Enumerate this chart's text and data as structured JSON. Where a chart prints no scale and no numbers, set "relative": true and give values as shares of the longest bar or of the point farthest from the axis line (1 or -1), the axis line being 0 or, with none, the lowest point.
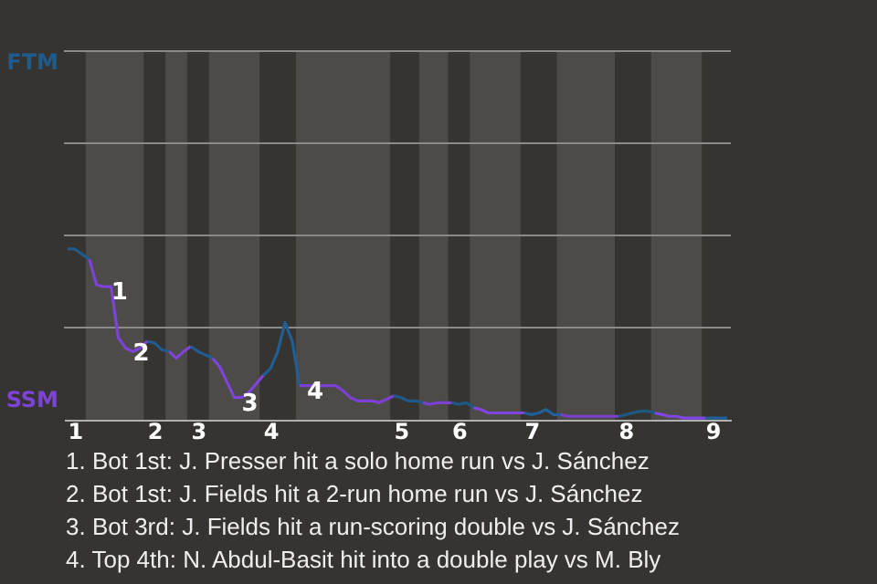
{
  "chart_data": {
    "type": "line",
    "relative": true,
    "categories": [
      null,
      "1",
      null,
      null,
      null,
      null,
      null,
      null,
      null,
      null,
      null,
      null,
      "2",
      null,
      null,
      null,
      null,
      null,
      "3",
      null,
      null,
      null,
      null,
      null,
      null,
      null,
      null,
      null,
      "4",
      null,
      null,
      null,
      null,
      null,
      null,
      null,
      null,
      null,
      null,
      null,
      null,
      null,
      null,
      null,
      null,
      null,
      "5",
      null,
      null,
      null,
      null,
      null,
      null,
      null,
      "6",
      null,
      null,
      null,
      null,
      null,
      null,
      null,
      null,
      null,
      "7",
      null,
      null,
      null,
      null,
      null,
      null,
      null,
      null,
      null,
      null,
      null,
      null,
      "8",
      null,
      null,
      null,
      null,
      null,
      null,
      null,
      null,
      null,
      null,
      null,
      "9",
      null,
      null
    ],
    "series": [
      {
        "name": "FTM",
        "color": "#1f5b8c",
        "values": [
          1.0,
          1.0,
          0.97,
          0.94,
          null,
          null,
          null,
          null,
          null,
          null,
          null,
          null,
          null,
          null,
          null,
          null,
          null,
          null,
          null,
          null,
          null,
          null,
          null,
          null,
          null,
          null,
          null,
          null,
          null,
          null,
          null,
          null,
          null,
          null,
          null,
          null,
          null,
          null,
          null,
          null,
          null,
          null,
          null,
          null,
          null,
          null,
          null,
          null,
          null,
          null,
          null,
          null,
          null,
          null,
          null,
          null,
          null,
          null,
          null,
          null,
          null,
          null,
          null,
          null,
          null,
          null,
          null,
          null,
          null,
          null,
          null,
          null,
          null,
          null,
          null,
          null,
          null,
          null,
          null,
          null,
          null,
          null,
          null,
          null,
          null,
          null,
          null,
          null,
          null,
          null,
          null,
          null
        ]
      },
      {
        "name": "SSM",
        "color": "#7d42d6",
        "values": [
          null,
          null,
          null,
          0.94,
          0.79,
          0.78,
          0.78,
          0.48,
          0.42,
          0.4,
          0.42,
          0.46,
          null,
          null,
          null,
          null,
          null,
          null,
          null,
          null,
          null,
          null,
          null,
          null,
          null,
          null,
          null,
          null,
          null,
          null,
          null,
          null,
          null,
          null,
          null,
          null,
          null,
          null,
          null,
          null,
          null,
          null,
          null,
          null,
          null,
          null,
          null,
          null,
          null,
          null,
          null,
          null,
          null,
          null,
          null,
          null,
          null,
          null,
          null,
          null,
          null,
          null,
          null,
          null,
          null,
          null,
          null,
          null,
          null,
          null,
          null,
          null,
          null,
          null,
          null,
          null,
          null,
          null,
          null,
          null,
          null,
          null,
          null,
          null,
          null,
          null,
          null,
          null,
          null,
          null,
          null,
          null
        ]
      },
      {
        "color": "#1f5c8f",
        "values": [
          null,
          null,
          null,
          null,
          null,
          null,
          null,
          null,
          null,
          null,
          null,
          0.46,
          0.45,
          0.41,
          0.4,
          null,
          null,
          null,
          null,
          null,
          null,
          null,
          null,
          null,
          null,
          null,
          null,
          null,
          null,
          null,
          null,
          null,
          null,
          null,
          null,
          null,
          null,
          null,
          null,
          null,
          null,
          null,
          null,
          null,
          null,
          null,
          null,
          null,
          null,
          null,
          null,
          null,
          null,
          null,
          null,
          null,
          null,
          null,
          null,
          null,
          null,
          null,
          null,
          null,
          null,
          null,
          null,
          null,
          null,
          null,
          null,
          null,
          null,
          null,
          null,
          null,
          null,
          null,
          null,
          null,
          null,
          null,
          null,
          null,
          null,
          null,
          null,
          null,
          null,
          null,
          null,
          null
        ]
      },
      {
        "color": "#7e43d9",
        "values": [
          null,
          null,
          null,
          null,
          null,
          null,
          null,
          null,
          null,
          null,
          null,
          null,
          null,
          null,
          0.4,
          0.36,
          0.4,
          0.43,
          null,
          null,
          null,
          null,
          null,
          null,
          null,
          null,
          null,
          null,
          null,
          null,
          null,
          null,
          null,
          null,
          null,
          null,
          null,
          null,
          null,
          null,
          null,
          null,
          null,
          null,
          null,
          null,
          null,
          null,
          null,
          null,
          null,
          null,
          null,
          null,
          null,
          null,
          null,
          null,
          null,
          null,
          null,
          null,
          null,
          null,
          null,
          null,
          null,
          null,
          null,
          null,
          null,
          null,
          null,
          null,
          null,
          null,
          null,
          null,
          null,
          null,
          null,
          null,
          null,
          null,
          null,
          null,
          null,
          null,
          null,
          null,
          null,
          null
        ]
      },
      {
        "color": "#205d92",
        "values": [
          null,
          null,
          null,
          null,
          null,
          null,
          null,
          null,
          null,
          null,
          null,
          null,
          null,
          null,
          null,
          null,
          null,
          0.43,
          0.4,
          0.38,
          0.36,
          null,
          null,
          null,
          null,
          null,
          null,
          null,
          null,
          null,
          null,
          null,
          null,
          null,
          null,
          null,
          null,
          null,
          null,
          null,
          null,
          null,
          null,
          null,
          null,
          null,
          null,
          null,
          null,
          null,
          null,
          null,
          null,
          null,
          null,
          null,
          null,
          null,
          null,
          null,
          null,
          null,
          null,
          null,
          null,
          null,
          null,
          null,
          null,
          null,
          null,
          null,
          null,
          null,
          null,
          null,
          null,
          null,
          null,
          null,
          null,
          null,
          null,
          null,
          null,
          null,
          null,
          null,
          null,
          null,
          null,
          null
        ]
      },
      {
        "color": "#7f44dc",
        "values": [
          null,
          null,
          null,
          null,
          null,
          null,
          null,
          null,
          null,
          null,
          null,
          null,
          null,
          null,
          null,
          null,
          null,
          null,
          null,
          null,
          0.36,
          0.31,
          0.22,
          0.13,
          0.13,
          0.16,
          0.21,
          0.26,
          null,
          null,
          null,
          null,
          null,
          null,
          null,
          null,
          null,
          null,
          null,
          null,
          null,
          null,
          null,
          null,
          null,
          null,
          null,
          null,
          null,
          null,
          null,
          null,
          null,
          null,
          null,
          null,
          null,
          null,
          null,
          null,
          null,
          null,
          null,
          null,
          null,
          null,
          null,
          null,
          null,
          null,
          null,
          null,
          null,
          null,
          null,
          null,
          null,
          null,
          null,
          null,
          null,
          null,
          null,
          null,
          null,
          null,
          null,
          null,
          null,
          null,
          null,
          null
        ]
      },
      {
        "color": "#205e95",
        "values": [
          null,
          null,
          null,
          null,
          null,
          null,
          null,
          null,
          null,
          null,
          null,
          null,
          null,
          null,
          null,
          null,
          null,
          null,
          null,
          null,
          null,
          null,
          null,
          null,
          null,
          null,
          null,
          0.26,
          0.3,
          0.4,
          0.57,
          0.46,
          0.2,
          null,
          null,
          null,
          null,
          null,
          null,
          null,
          null,
          null,
          null,
          null,
          null,
          null,
          null,
          null,
          null,
          null,
          null,
          null,
          null,
          null,
          null,
          null,
          null,
          null,
          null,
          null,
          null,
          null,
          null,
          null,
          null,
          null,
          null,
          null,
          null,
          null,
          null,
          null,
          null,
          null,
          null,
          null,
          null,
          null,
          null,
          null,
          null,
          null,
          null,
          null,
          null,
          null,
          null,
          null,
          null,
          null,
          null,
          null
        ]
      },
      {
        "color": "#7c41d3",
        "values": [
          null,
          null,
          null,
          null,
          null,
          null,
          null,
          null,
          null,
          null,
          null,
          null,
          null,
          null,
          null,
          null,
          null,
          null,
          null,
          null,
          null,
          null,
          null,
          null,
          null,
          null,
          null,
          null,
          null,
          null,
          null,
          null,
          0.2,
          0.2,
          0.2,
          0.2,
          0.2,
          0.2,
          0.17,
          0.13,
          0.11,
          0.11,
          0.11,
          0.1,
          0.12,
          0.14,
          null,
          null,
          null,
          null,
          null,
          null,
          null,
          null,
          null,
          null,
          null,
          null,
          null,
          null,
          null,
          null,
          null,
          null,
          null,
          null,
          null,
          null,
          null,
          null,
          null,
          null,
          null,
          null,
          null,
          null,
          null,
          null,
          null,
          null,
          null,
          null,
          null,
          null,
          null,
          null,
          null,
          null,
          null,
          null,
          null,
          null
        ]
      },
      {
        "color": "#1e5a89",
        "values": [
          null,
          null,
          null,
          null,
          null,
          null,
          null,
          null,
          null,
          null,
          null,
          null,
          null,
          null,
          null,
          null,
          null,
          null,
          null,
          null,
          null,
          null,
          null,
          null,
          null,
          null,
          null,
          null,
          null,
          null,
          null,
          null,
          null,
          null,
          null,
          null,
          null,
          null,
          null,
          null,
          null,
          null,
          null,
          null,
          null,
          0.14,
          0.13,
          0.11,
          0.11,
          0.1,
          null,
          null,
          null,
          null,
          null,
          null,
          null,
          null,
          null,
          null,
          null,
          null,
          null,
          null,
          null,
          null,
          null,
          null,
          null,
          null,
          null,
          null,
          null,
          null,
          null,
          null,
          null,
          null,
          null,
          null,
          null,
          null,
          null,
          null,
          null,
          null,
          null,
          null,
          null,
          null,
          null,
          null
        ]
      },
      {
        "color": "#7b40d0",
        "values": [
          null,
          null,
          null,
          null,
          null,
          null,
          null,
          null,
          null,
          null,
          null,
          null,
          null,
          null,
          null,
          null,
          null,
          null,
          null,
          null,
          null,
          null,
          null,
          null,
          null,
          null,
          null,
          null,
          null,
          null,
          null,
          null,
          null,
          null,
          null,
          null,
          null,
          null,
          null,
          null,
          null,
          null,
          null,
          null,
          null,
          null,
          null,
          null,
          null,
          0.1,
          0.09,
          0.1,
          0.1,
          0.1,
          null,
          null,
          null,
          null,
          null,
          null,
          null,
          null,
          null,
          null,
          null,
          null,
          null,
          null,
          null,
          null,
          null,
          null,
          null,
          null,
          null,
          null,
          null,
          null,
          null,
          null,
          null,
          null,
          null,
          null,
          null,
          null,
          null,
          null,
          null,
          null,
          null,
          null
        ]
      },
      {
        "color": "#1e5986",
        "values": [
          null,
          null,
          null,
          null,
          null,
          null,
          null,
          null,
          null,
          null,
          null,
          null,
          null,
          null,
          null,
          null,
          null,
          null,
          null,
          null,
          null,
          null,
          null,
          null,
          null,
          null,
          null,
          null,
          null,
          null,
          null,
          null,
          null,
          null,
          null,
          null,
          null,
          null,
          null,
          null,
          null,
          null,
          null,
          null,
          null,
          null,
          null,
          null,
          null,
          null,
          null,
          null,
          null,
          0.1,
          0.09,
          0.1,
          0.07,
          null,
          null,
          null,
          null,
          null,
          null,
          null,
          null,
          null,
          null,
          null,
          null,
          null,
          null,
          null,
          null,
          null,
          null,
          null,
          null,
          null,
          null,
          null,
          null,
          null,
          null,
          null,
          null,
          null,
          null,
          null,
          null,
          null,
          null,
          null
        ]
      },
      {
        "color": "#8045df",
        "values": [
          null,
          null,
          null,
          null,
          null,
          null,
          null,
          null,
          null,
          null,
          null,
          null,
          null,
          null,
          null,
          null,
          null,
          null,
          null,
          null,
          null,
          null,
          null,
          null,
          null,
          null,
          null,
          null,
          null,
          null,
          null,
          null,
          null,
          null,
          null,
          null,
          null,
          null,
          null,
          null,
          null,
          null,
          null,
          null,
          null,
          null,
          null,
          null,
          null,
          null,
          null,
          null,
          null,
          null,
          null,
          null,
          0.07,
          0.06,
          0.04,
          0.04,
          0.04,
          0.04,
          0.04,
          0.04,
          null,
          null,
          null,
          null,
          null,
          null,
          null,
          null,
          null,
          null,
          null,
          null,
          null,
          null,
          null,
          null,
          null,
          null,
          null,
          null,
          null,
          null,
          null,
          null,
          null,
          null,
          null,
          null
        ]
      },
      {
        "color": "#215f98",
        "values": [
          null,
          null,
          null,
          null,
          null,
          null,
          null,
          null,
          null,
          null,
          null,
          null,
          null,
          null,
          null,
          null,
          null,
          null,
          null,
          null,
          null,
          null,
          null,
          null,
          null,
          null,
          null,
          null,
          null,
          null,
          null,
          null,
          null,
          null,
          null,
          null,
          null,
          null,
          null,
          null,
          null,
          null,
          null,
          null,
          null,
          null,
          null,
          null,
          null,
          null,
          null,
          null,
          null,
          null,
          null,
          null,
          null,
          null,
          null,
          null,
          null,
          null,
          null,
          0.04,
          0.03,
          0.04,
          0.06,
          0.03,
          0.03,
          null,
          null,
          null,
          null,
          null,
          null,
          null,
          null,
          null,
          null,
          null,
          null,
          null,
          null,
          null,
          null,
          null,
          null,
          null,
          null,
          null,
          null,
          null
        ]
      },
      {
        "color": "#7a3fcd",
        "values": [
          null,
          null,
          null,
          null,
          null,
          null,
          null,
          null,
          null,
          null,
          null,
          null,
          null,
          null,
          null,
          null,
          null,
          null,
          null,
          null,
          null,
          null,
          null,
          null,
          null,
          null,
          null,
          null,
          null,
          null,
          null,
          null,
          null,
          null,
          null,
          null,
          null,
          null,
          null,
          null,
          null,
          null,
          null,
          null,
          null,
          null,
          null,
          null,
          null,
          null,
          null,
          null,
          null,
          null,
          null,
          null,
          null,
          null,
          null,
          null,
          null,
          null,
          null,
          null,
          null,
          null,
          null,
          null,
          0.03,
          0.02,
          0.02,
          0.02,
          0.02,
          0.02,
          0.02,
          0.02,
          0.02,
          null,
          null,
          null,
          null,
          null,
          null,
          null,
          null,
          null,
          null,
          null,
          null,
          null,
          null,
          null
        ]
      },
      {
        "color": "#1d5883",
        "values": [
          null,
          null,
          null,
          null,
          null,
          null,
          null,
          null,
          null,
          null,
          null,
          null,
          null,
          null,
          null,
          null,
          null,
          null,
          null,
          null,
          null,
          null,
          null,
          null,
          null,
          null,
          null,
          null,
          null,
          null,
          null,
          null,
          null,
          null,
          null,
          null,
          null,
          null,
          null,
          null,
          null,
          null,
          null,
          null,
          null,
          null,
          null,
          null,
          null,
          null,
          null,
          null,
          null,
          null,
          null,
          null,
          null,
          null,
          null,
          null,
          null,
          null,
          null,
          null,
          null,
          null,
          null,
          null,
          null,
          null,
          null,
          null,
          null,
          null,
          null,
          null,
          0.02,
          0.03,
          0.04,
          0.05,
          0.05,
          0.04,
          null,
          null,
          null,
          null,
          null,
          null,
          null,
          null,
          null,
          null
        ]
      },
      {
        "color": "#8146e2",
        "values": [
          null,
          null,
          null,
          null,
          null,
          null,
          null,
          null,
          null,
          null,
          null,
          null,
          null,
          null,
          null,
          null,
          null,
          null,
          null,
          null,
          null,
          null,
          null,
          null,
          null,
          null,
          null,
          null,
          null,
          null,
          null,
          null,
          null,
          null,
          null,
          null,
          null,
          null,
          null,
          null,
          null,
          null,
          null,
          null,
          null,
          null,
          null,
          null,
          null,
          null,
          null,
          null,
          null,
          null,
          null,
          null,
          null,
          null,
          null,
          null,
          null,
          null,
          null,
          null,
          null,
          null,
          null,
          null,
          null,
          null,
          null,
          null,
          null,
          null,
          null,
          null,
          null,
          null,
          null,
          null,
          null,
          0.04,
          0.03,
          0.02,
          0.02,
          0.01,
          0.01,
          0.01,
          0.01,
          null,
          null,
          null
        ]
      },
      {
        "color": "#22609b",
        "values": [
          null,
          null,
          null,
          null,
          null,
          null,
          null,
          null,
          null,
          null,
          null,
          null,
          null,
          null,
          null,
          null,
          null,
          null,
          null,
          null,
          null,
          null,
          null,
          null,
          null,
          null,
          null,
          null,
          null,
          null,
          null,
          null,
          null,
          null,
          null,
          null,
          null,
          null,
          null,
          null,
          null,
          null,
          null,
          null,
          null,
          null,
          null,
          null,
          null,
          null,
          null,
          null,
          null,
          null,
          null,
          null,
          null,
          null,
          null,
          null,
          null,
          null,
          null,
          null,
          null,
          null,
          null,
          null,
          null,
          null,
          null,
          null,
          null,
          null,
          null,
          null,
          null,
          null,
          null,
          null,
          null,
          null,
          null,
          null,
          null,
          null,
          null,
          null,
          0.01,
          0.01,
          0.01,
          0.01
        ]
      }
    ],
    "ref_lines": [
      {
        "axis": "y",
        "value": 0.54,
        "color": "#8a8a8a"
      },
      {
        "axis": "y",
        "value": 1.08,
        "color": "#8a8a8a"
      },
      {
        "axis": "y",
        "value": 1.62,
        "color": "#8a8a8a"
      },
      {
        "axis": "y",
        "value": 2.16,
        "color": "#8a8a8a"
      }
    ],
    "annotations": [
      {
        "text": "1",
        "y": 0.78
      },
      {
        "text": "2",
        "y": 0.42
      },
      {
        "text": "3",
        "y": 0.13
      },
      {
        "text": "4",
        "y": 0.2
      },
      "1. Bot 1st: J. Presser hit a solo home run vs J. Sánchez",
      "2. Bot 1st: J. Fields hit a 2-run home run vs J. Sánchez",
      "3. Bot 3rd: J. Fields hit a run-scoring double vs J. Sánchez",
      "4. Top 4th: N. Abdul-Basit hit into a double play vs M. Bly"
    ]
  }
}
